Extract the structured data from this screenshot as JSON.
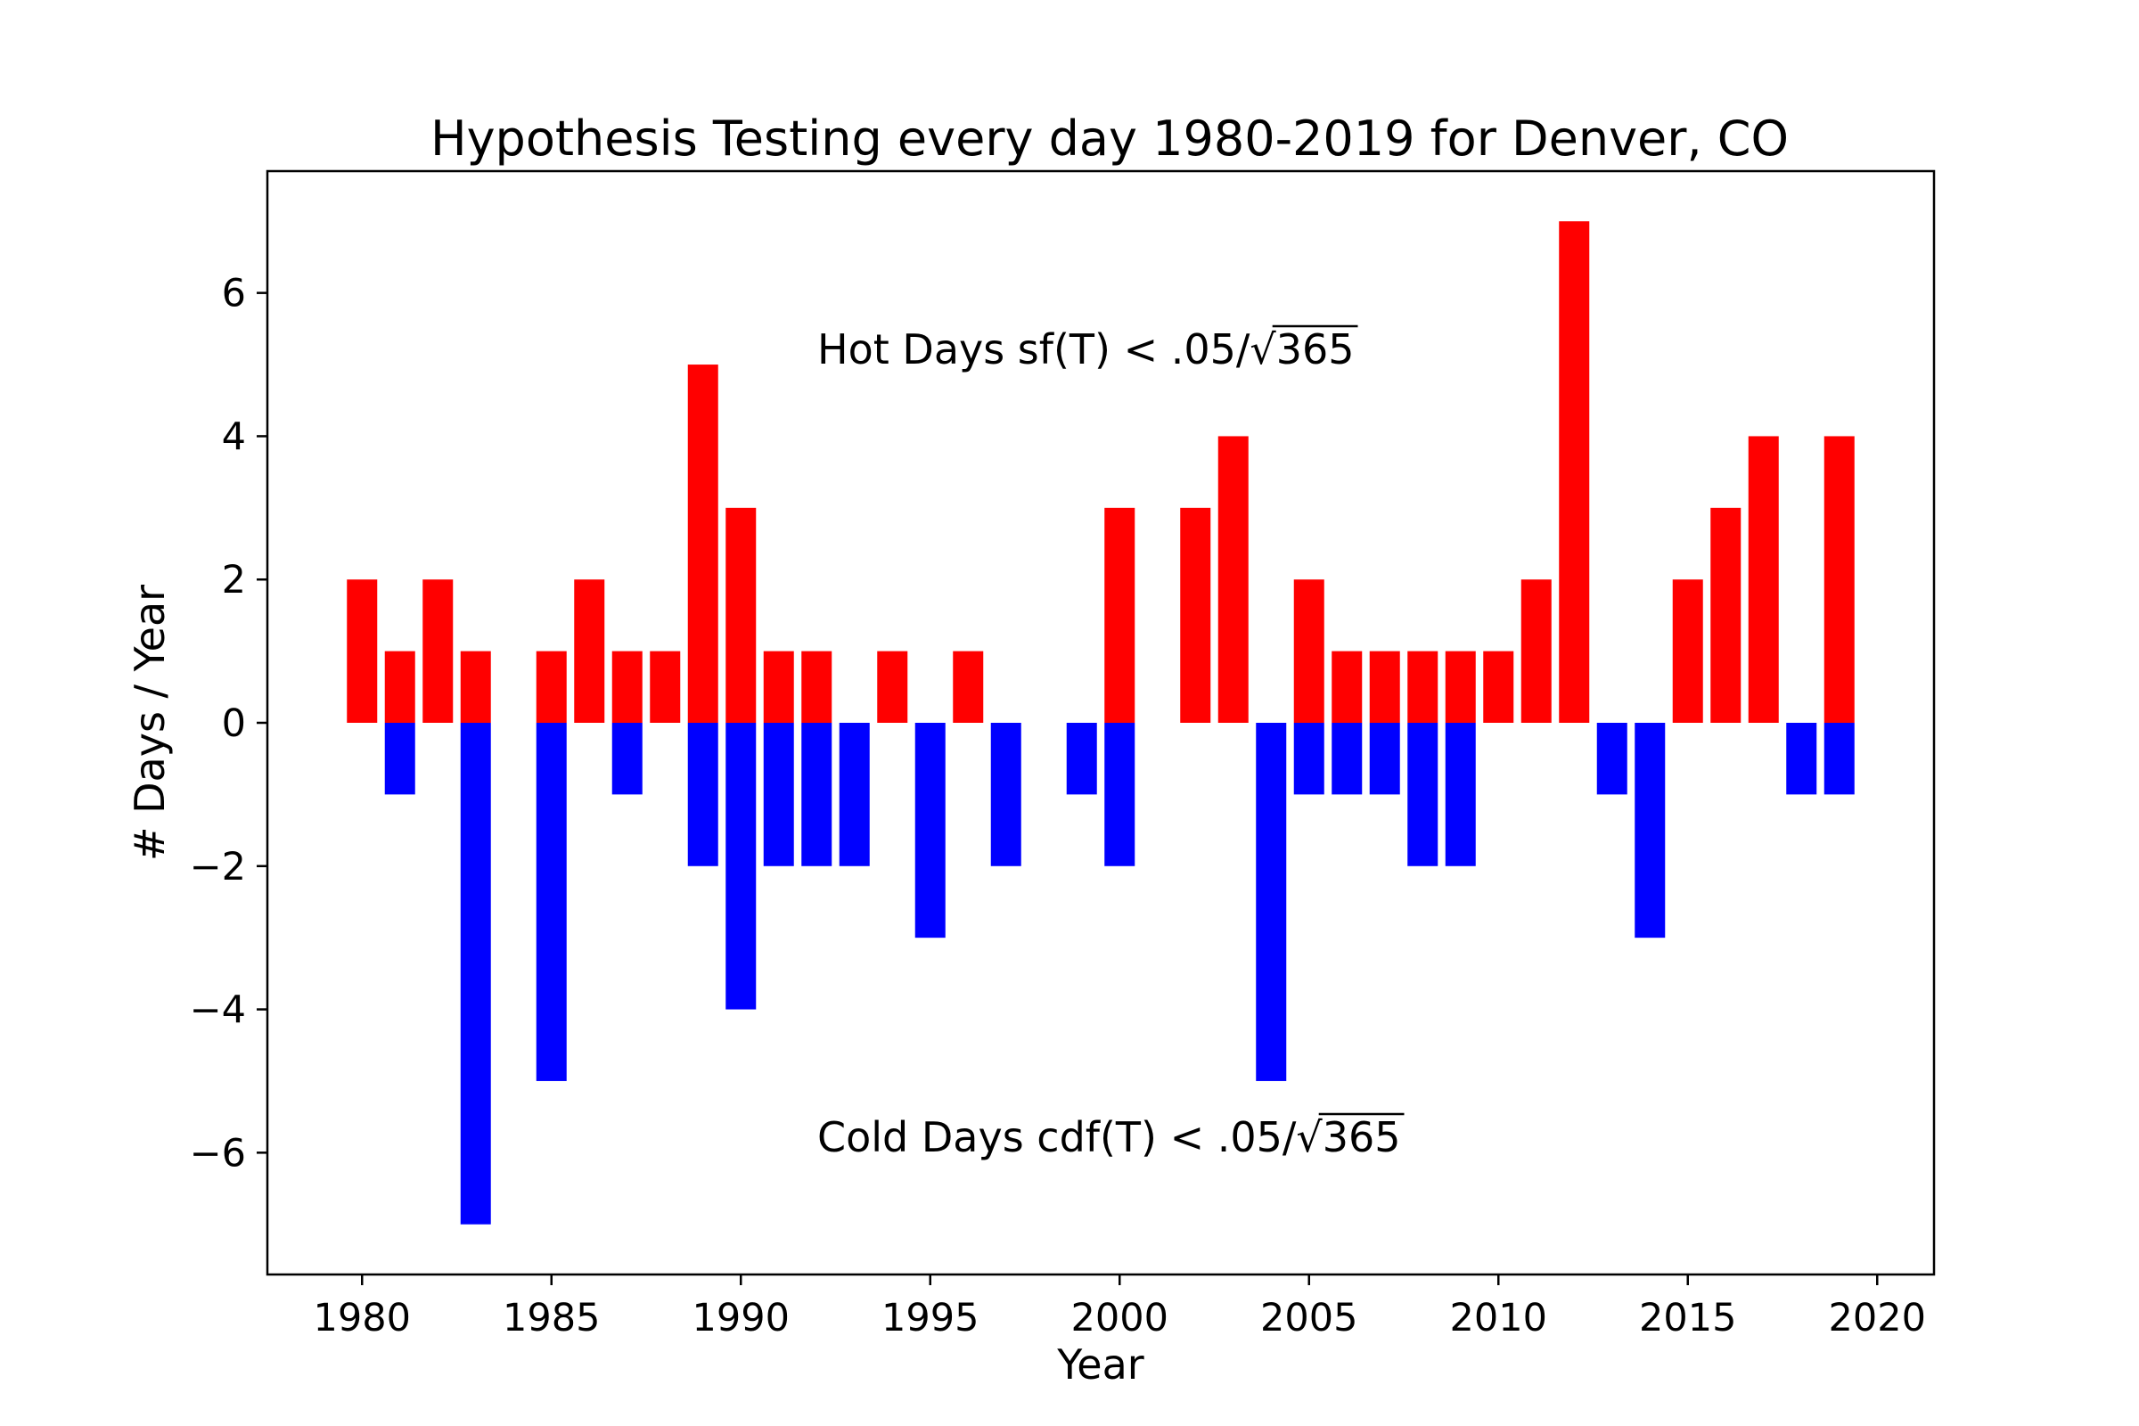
{
  "chart_data": {
    "type": "bar",
    "title": "Hypothesis Testing every day 1980-2019 for Denver, CO",
    "xlabel": "Year",
    "ylabel": "# Days / Year",
    "xlim": [
      1977.5,
      2021.5
    ],
    "ylim": [
      -7.7,
      7.7
    ],
    "xticks": [
      1980,
      1985,
      1990,
      1995,
      2000,
      2005,
      2010,
      2015,
      2020
    ],
    "yticks": [
      -6,
      -4,
      -2,
      0,
      2,
      4,
      6
    ],
    "ytick_labels": [
      "−6",
      "−4",
      "−2",
      "0",
      "2",
      "4",
      "6"
    ],
    "grid": false,
    "legend": "none",
    "x": [
      1980,
      1981,
      1982,
      1983,
      1984,
      1985,
      1986,
      1987,
      1988,
      1989,
      1990,
      1991,
      1992,
      1993,
      1994,
      1995,
      1996,
      1997,
      1998,
      1999,
      2000,
      2001,
      2002,
      2003,
      2004,
      2005,
      2006,
      2007,
      2008,
      2009,
      2010,
      2011,
      2012,
      2013,
      2014,
      2015,
      2016,
      2017,
      2018,
      2019
    ],
    "series": [
      {
        "color": "#ff0000",
        "values": [
          2,
          1,
          2,
          1,
          0,
          1,
          2,
          1,
          1,
          5,
          3,
          1,
          1,
          0,
          1,
          0,
          1,
          0,
          0,
          0,
          3,
          0,
          3,
          4,
          0,
          2,
          1,
          1,
          1,
          1,
          1,
          2,
          7,
          0,
          0,
          2,
          3,
          4,
          0,
          4
        ]
      },
      {
        "color": "#0000ff",
        "values": [
          0,
          -1,
          0,
          -7,
          0,
          -5,
          0,
          -1,
          0,
          -2,
          -4,
          -2,
          -2,
          -2,
          0,
          -3,
          0,
          -2,
          0,
          -1,
          -2,
          0,
          0,
          0,
          -5,
          -1,
          -1,
          -1,
          -2,
          -2,
          0,
          0,
          0,
          -1,
          -3,
          0,
          0,
          0,
          -1,
          -1
        ]
      }
    ],
    "annotations": {
      "hot_prefix": "Hot Days sf(T) < .05/",
      "cold_prefix": "Cold Days cdf(T) < .05/",
      "radicand": "365"
    }
  }
}
